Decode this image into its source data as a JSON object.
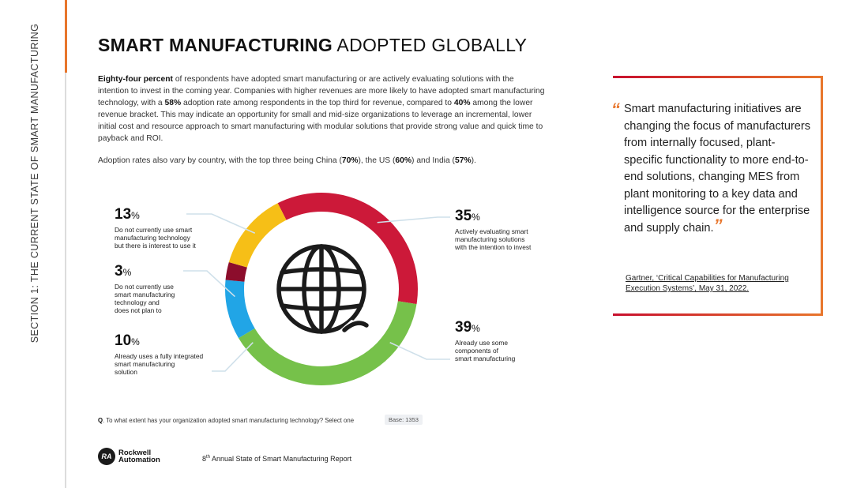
{
  "sidebar": {
    "section_label": "SECTION 1: THE CURRENT STATE OF SMART MANUFACTURING"
  },
  "header": {
    "title_bold": "SMART MANUFACTURING",
    "title_light": " ADOPTED GLOBALLY"
  },
  "intro": {
    "p1_bold": "Eighty-four percent",
    "p1_a": " of respondents have adopted smart manufacturing or are actively evaluating solutions with the intention to invest in the coming year. Companies with higher revenues are more likely to have adopted smart manufacturing technology, with a ",
    "p1_bold2": "58%",
    "p1_b": " adoption rate among respondents in the top third for revenue, compared to ",
    "p1_bold3": "40%",
    "p1_c": " among the lower revenue bracket. This may indicate an opportunity for small and mid-size organizations to leverage an incremental, lower initial cost and resource approach to smart manufacturing with modular solutions that provide strong value and quick time to payback and ROI.",
    "p2_a": "Adoption rates also vary by country, with the top three being China (",
    "p2_china": "70%",
    "p2_b": "), the US (",
    "p2_us": "60%",
    "p2_c": ") and India (",
    "p2_india": "57%",
    "p2_d": ")."
  },
  "chart_data": {
    "type": "pie",
    "categories": [
      "Actively evaluating smart manufacturing solutions with the intention to invest",
      "Already use some components of smart manufacturing",
      "Already uses a fully integrated smart manufacturing solution",
      "Do not currently use smart manufacturing technology and does not plan to",
      "Do not currently use smart manufacturing technology but there is interest to use it"
    ],
    "values": [
      35,
      39,
      10,
      3,
      13
    ],
    "colors": [
      "#cc1939",
      "#76c14a",
      "#21a5e6",
      "#8c0d2c",
      "#f6bf17"
    ],
    "donut": true,
    "center_icon": "globe-icon",
    "callouts": [
      {
        "pct": "35",
        "sign": "%",
        "lines": [
          "Actively evaluating smart",
          "manufacturing solutions",
          "with the intention to invest"
        ]
      },
      {
        "pct": "39",
        "sign": "%",
        "lines": [
          "Already use some",
          "components of",
          "smart manufacturing"
        ]
      },
      {
        "pct": "10",
        "sign": "%",
        "lines": [
          "Already uses a fully integrated",
          "smart manufacturing",
          "solution"
        ]
      },
      {
        "pct": "3",
        "sign": "%",
        "lines": [
          "Do not currently use",
          "smart manufacturing",
          "technology and",
          "does not plan to"
        ]
      },
      {
        "pct": "13",
        "sign": "%",
        "lines": [
          "Do not currently use smart",
          "manufacturing technology",
          "but there is interest to use it"
        ]
      }
    ]
  },
  "footnote": {
    "q": "Q",
    "text": ". To what extent has your organization adopted smart manufacturing technology? Select one",
    "base": "Base: 1353"
  },
  "brand": {
    "mark": "RA",
    "line1": "Rockwell",
    "line2": "Automation"
  },
  "report": {
    "pre": "8",
    "sup": "th",
    "post": " Annual State of Smart Manufacturing Report"
  },
  "quote": {
    "open": "“",
    "text": "Smart manufacturing initiatives are changing the focus of manufacturers from internally focused, plant-specific functionality to more end-to-end solutions, changing MES from plant monitoring to a key data and intelligence source for the enterprise and supply chain.",
    "close": "”",
    "source": "Gartner, ‘Critical Capabilities for Manufacturing Execution Systems’, May 31, 2022."
  },
  "colors": {
    "accent_orange": "#e8762c",
    "accent_red": "#c8102e"
  }
}
